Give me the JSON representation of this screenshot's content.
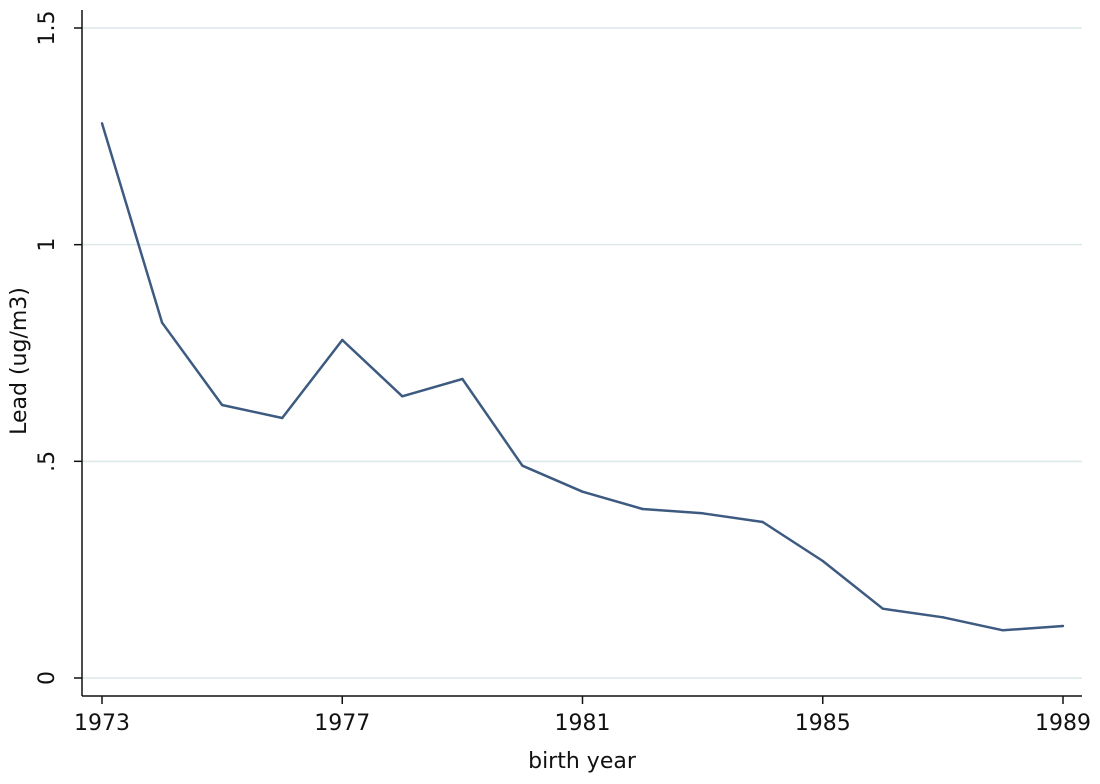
{
  "chart_data": {
    "type": "line",
    "title": "",
    "xlabel": "birth year",
    "ylabel": "Lead (ug/m3)",
    "xlim": [
      1973,
      1989
    ],
    "ylim": [
      0,
      1.5
    ],
    "x_ticks": [
      {
        "value": 1973,
        "label": "1973"
      },
      {
        "value": 1977,
        "label": "1977"
      },
      {
        "value": 1981,
        "label": "1981"
      },
      {
        "value": 1985,
        "label": "1985"
      },
      {
        "value": 1989,
        "label": "1989"
      }
    ],
    "y_ticks": [
      {
        "value": 0,
        "label": "0"
      },
      {
        "value": 0.5,
        "label": ".5"
      },
      {
        "value": 1,
        "label": "1"
      },
      {
        "value": 1.5,
        "label": "1.5"
      }
    ],
    "grid": true,
    "legend": "none",
    "colors": {
      "line": "#3d5a80",
      "grid": "#dce8ea",
      "axis": "#111111"
    },
    "series": [
      {
        "x": [
          1973,
          1974,
          1975,
          1976,
          1977,
          1978,
          1979,
          1980,
          1981,
          1982,
          1983,
          1984,
          1985,
          1986,
          1987,
          1988,
          1989
        ],
        "y": [
          1.28,
          0.82,
          0.63,
          0.6,
          0.78,
          0.65,
          0.69,
          0.49,
          0.43,
          0.39,
          0.38,
          0.36,
          0.27,
          0.16,
          0.14,
          0.11,
          0.12
        ]
      }
    ]
  }
}
